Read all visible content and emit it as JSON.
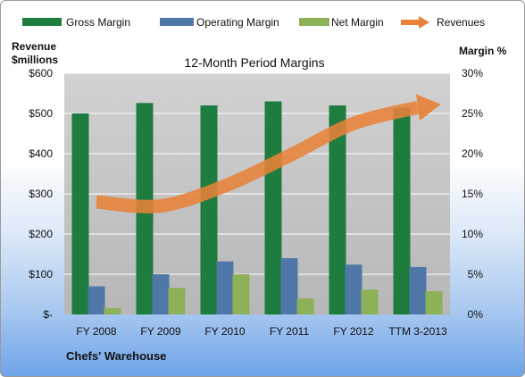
{
  "chart_data": {
    "type": "bar",
    "title": "12-Month Period Margins",
    "footer": "Chefs' Warehouse",
    "left_axis_title": [
      "Revenue",
      "$millions"
    ],
    "right_axis_title": "Margin %",
    "categories": [
      "FY 2008",
      "FY 2009",
      "FY 2010",
      "FY 2011",
      "FY 2012",
      "TTM 3-2013"
    ],
    "left_ticks": [
      "$-",
      "$100",
      "$200",
      "$300",
      "$400",
      "$500",
      "$600"
    ],
    "right_ticks": [
      "0%",
      "5%",
      "10%",
      "15%",
      "20%",
      "25%",
      "30%"
    ],
    "ylim_left": [
      0,
      600
    ],
    "ylim_right": [
      0,
      30
    ],
    "grid": true,
    "legend_position": "top",
    "series": [
      {
        "name": "Gross Margin",
        "type": "bar",
        "axis": "right",
        "color": "#1e7c3f",
        "values": [
          25.0,
          26.3,
          26.0,
          26.5,
          26.0,
          25.7
        ]
      },
      {
        "name": "Operating Margin",
        "type": "bar",
        "axis": "right",
        "color": "#4f77a8",
        "values": [
          3.5,
          5.0,
          6.6,
          7.0,
          6.2,
          5.9
        ]
      },
      {
        "name": "Net Margin",
        "type": "bar",
        "axis": "right",
        "color": "#8db157",
        "values": [
          0.8,
          3.3,
          5.0,
          2.0,
          3.1,
          2.9
        ]
      },
      {
        "name": "Revenues",
        "type": "line",
        "axis": "left",
        "color": "#e8823a",
        "values": [
          280,
          270,
          320,
          395,
          475,
          515
        ]
      }
    ]
  }
}
